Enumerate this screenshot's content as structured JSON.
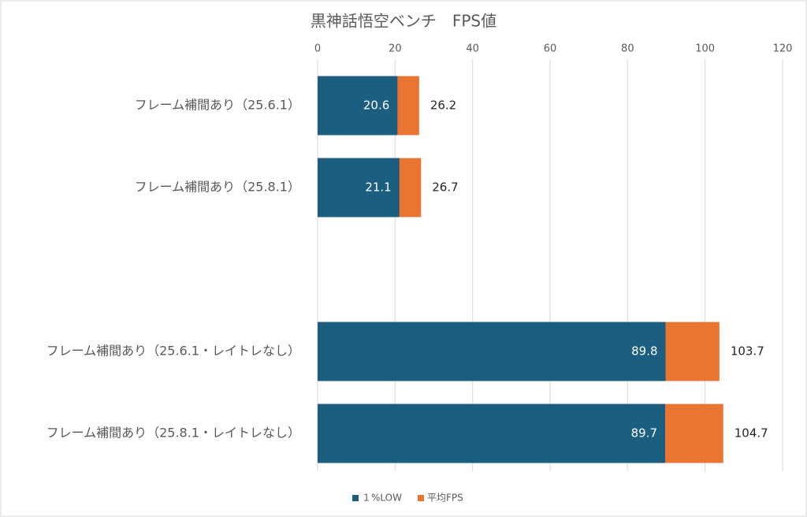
{
  "chart_data": {
    "type": "bar",
    "orientation": "horizontal",
    "overlap": true,
    "title": "黒神話悟空ベンチ　FPS値",
    "categories": [
      "フレーム補間あり（25.6.1）",
      "フレーム補間あり（25.8.1）",
      null,
      "フレーム補間あり（25.6.1・レイトレなし）",
      "フレーム補間あり（25.8.1・レイトレなし）"
    ],
    "series": [
      {
        "name": "１%LOW",
        "color": "#1b5e80",
        "values": [
          20.6,
          21.1,
          null,
          89.8,
          89.7
        ]
      },
      {
        "name": "平均FPS",
        "color": "#e97532",
        "values": [
          26.2,
          26.7,
          null,
          103.7,
          104.7
        ]
      }
    ],
    "xlim": [
      0,
      120
    ],
    "xticks": [
      0,
      20,
      40,
      60,
      80,
      100,
      120
    ],
    "grid": true,
    "legend": "bottom"
  }
}
